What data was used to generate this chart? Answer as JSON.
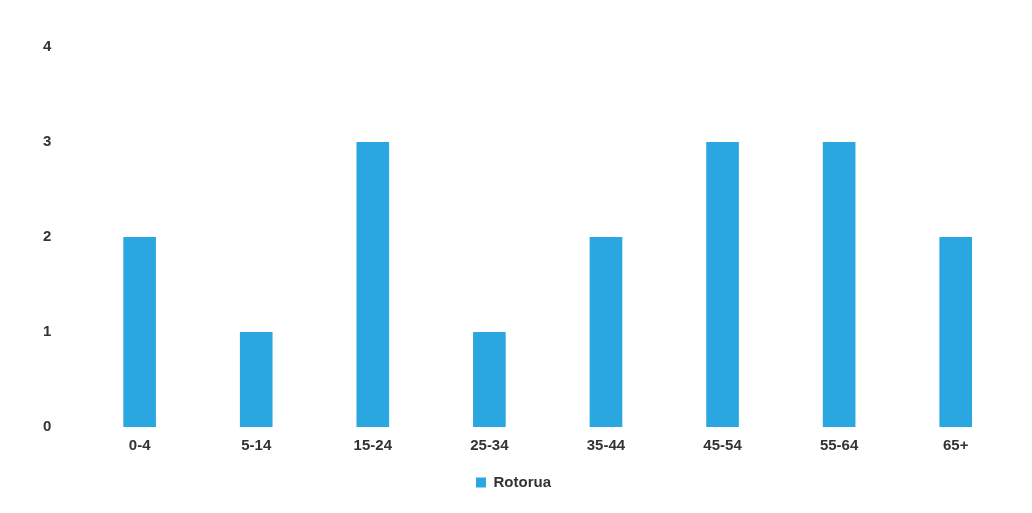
{
  "chart_data": {
    "type": "bar",
    "categories": [
      "0-4",
      "5-14",
      "15-24",
      "25-34",
      "35-44",
      "45-54",
      "55-64",
      "65+"
    ],
    "series": [
      {
        "name": "Rotorua",
        "color": "#2aa7e0",
        "values": [
          2,
          1,
          3,
          1,
          2,
          3,
          3,
          2
        ]
      }
    ],
    "ylim": [
      0,
      4
    ],
    "yticks": [
      0,
      1,
      2,
      3,
      4
    ],
    "grid": false,
    "legend": "bottom"
  }
}
